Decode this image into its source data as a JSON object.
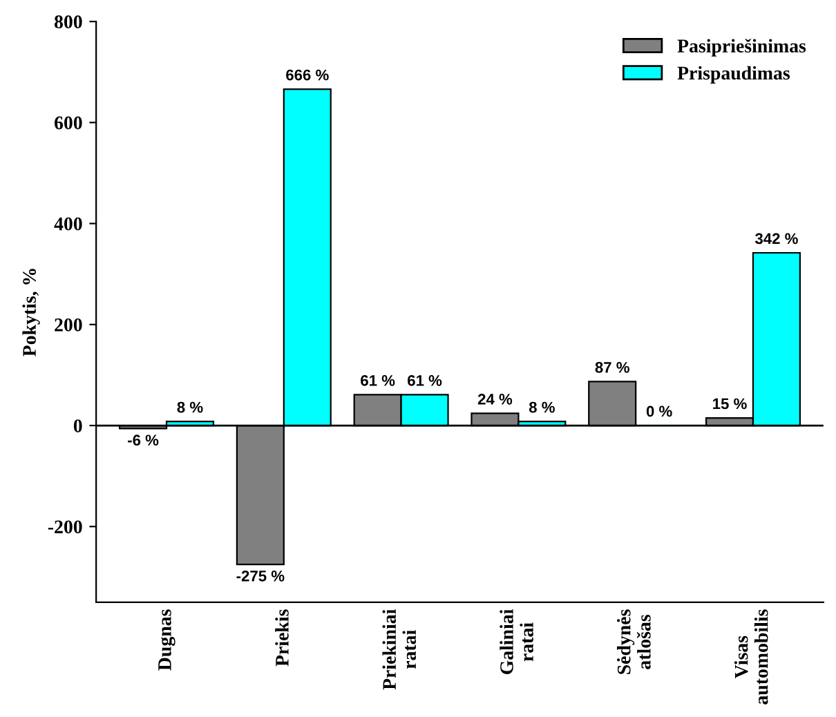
{
  "chart_data": {
    "type": "bar",
    "ylabel": "Pokytis, %",
    "categories": [
      "Dugnas",
      "Priekis",
      "Priekiniai\nratai",
      "Galiniai\nratai",
      "Sėdynės\natlošas",
      "Visas\nautomobilis"
    ],
    "series": [
      {
        "name": "Pasipriešinimas",
        "color": "#808080",
        "values": [
          -6,
          -275,
          61,
          24,
          87,
          15
        ],
        "value_labels": [
          "-6 %",
          "-275 %",
          "61 %",
          "24 %",
          "87 %",
          "15 %"
        ]
      },
      {
        "name": "Prispaudimas",
        "color": "#00ffff",
        "values": [
          8,
          666,
          61,
          8,
          0,
          342
        ],
        "value_labels": [
          "8 %",
          "666 %",
          "61 %",
          "8 %",
          "0 %",
          "342 %"
        ]
      }
    ],
    "ylim": [
      -350,
      800
    ],
    "yticks": [
      -200,
      0,
      200,
      400,
      600,
      800
    ],
    "grid": false,
    "ref_lines": [
      {
        "axis": "y",
        "value": 0,
        "color": "#000000"
      }
    ],
    "legend": "top right"
  }
}
